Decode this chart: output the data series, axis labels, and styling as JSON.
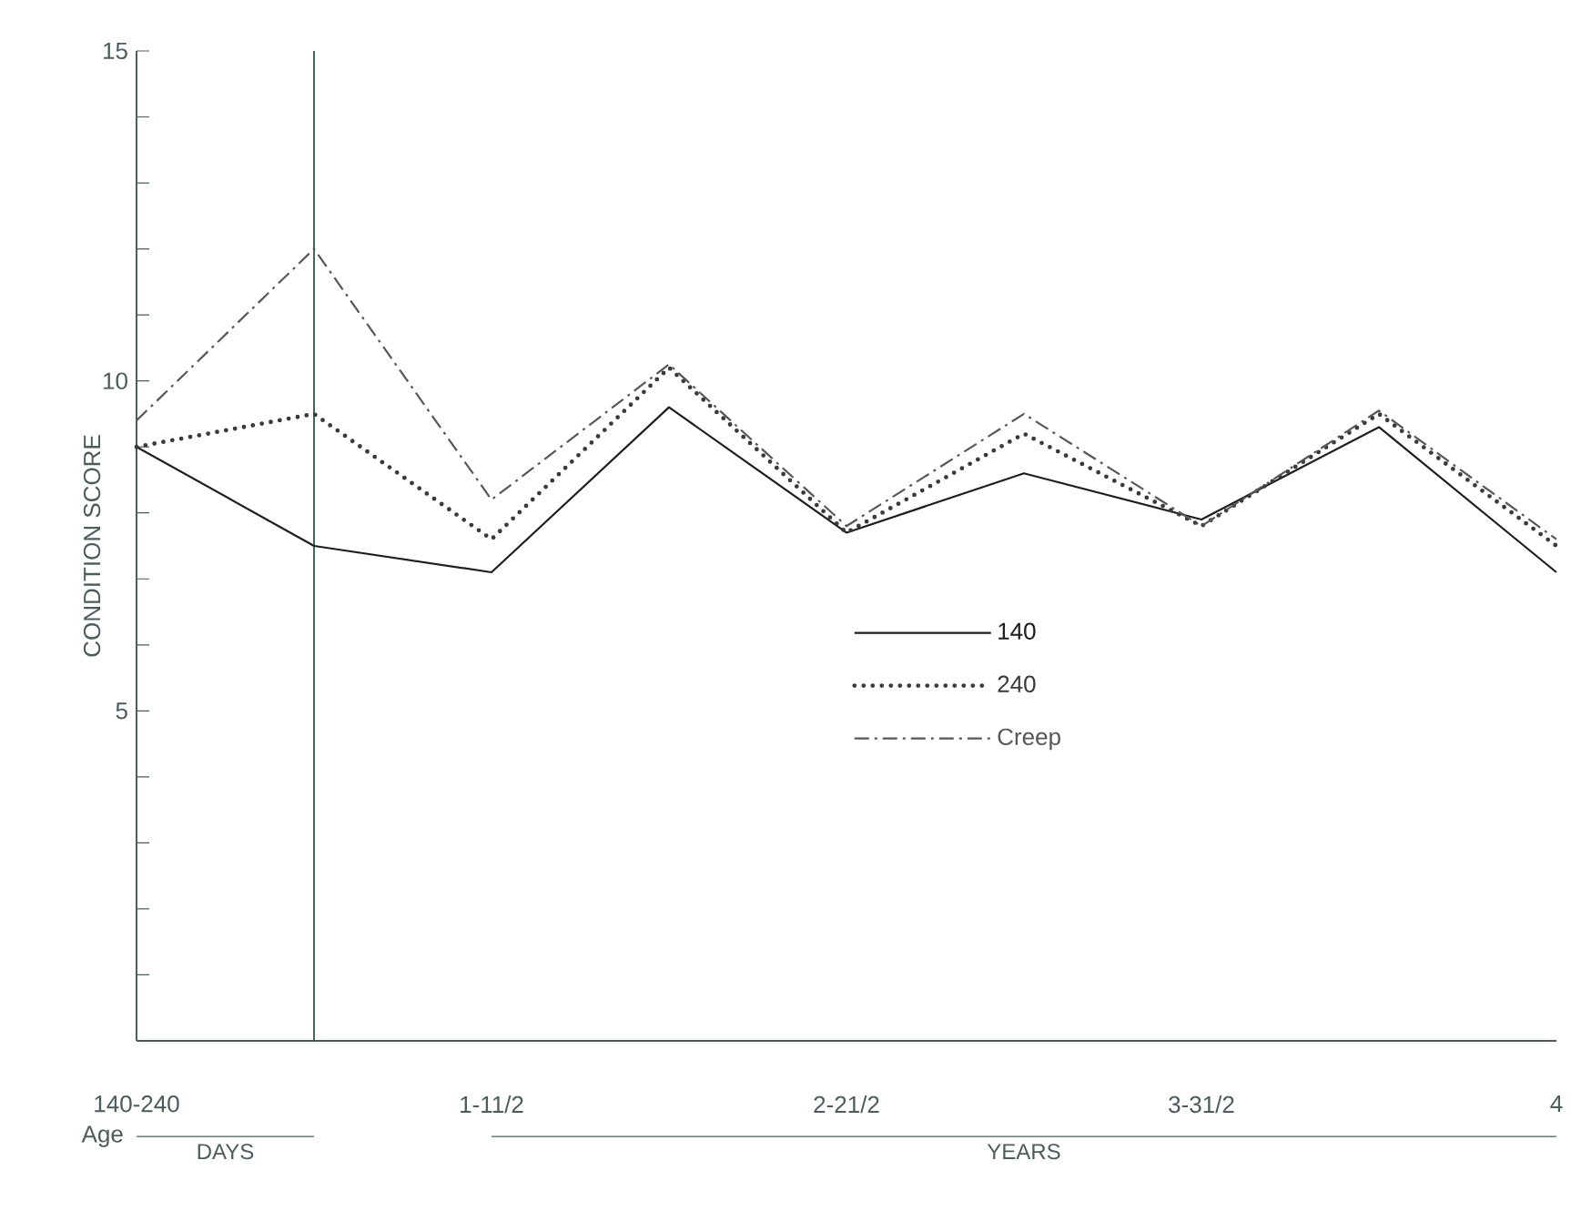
{
  "chart_data": {
    "type": "line",
    "ylabel": "CONDITION SCORE",
    "xlabel": "Age",
    "categories": [
      "140-240",
      null,
      "1-11/2",
      null,
      "2-21/2",
      null,
      "3-31/2",
      null,
      "4"
    ],
    "ylim": [
      0,
      15
    ],
    "yticks": [
      {
        "value": 1,
        "label": null
      },
      {
        "value": 2,
        "label": null
      },
      {
        "value": 3,
        "label": null
      },
      {
        "value": 4,
        "label": null
      },
      5,
      {
        "value": 6,
        "label": null
      },
      {
        "value": 7,
        "label": null
      },
      {
        "value": 8,
        "label": null
      },
      {
        "value": 9,
        "label": null
      },
      10,
      {
        "value": 11,
        "label": null
      },
      {
        "value": 12,
        "label": null
      },
      {
        "value": 13,
        "label": null
      },
      {
        "value": 14,
        "label": null
      },
      15
    ],
    "series": [
      {
        "name": "140",
        "color": "#1e1e1e",
        "line_style": "solid",
        "values": [
          9.0,
          7.5,
          7.1,
          9.6,
          7.7,
          8.6,
          7.9,
          9.3,
          7.1
        ]
      },
      {
        "name": "240",
        "color": "#3a3a3a",
        "line_style": "dotted",
        "values": [
          9.0,
          9.5,
          7.6,
          10.2,
          7.7,
          9.2,
          7.8,
          9.5,
          7.5
        ]
      },
      {
        "name": "Creep",
        "color": "#575757",
        "line_style": "dashdot",
        "values": [
          9.4,
          12.0,
          8.2,
          10.25,
          7.8,
          9.5,
          7.8,
          9.55,
          7.6
        ]
      }
    ],
    "annotations": [
      "DAYS",
      "YEARS"
    ],
    "legend": "center",
    "marker": "none"
  }
}
